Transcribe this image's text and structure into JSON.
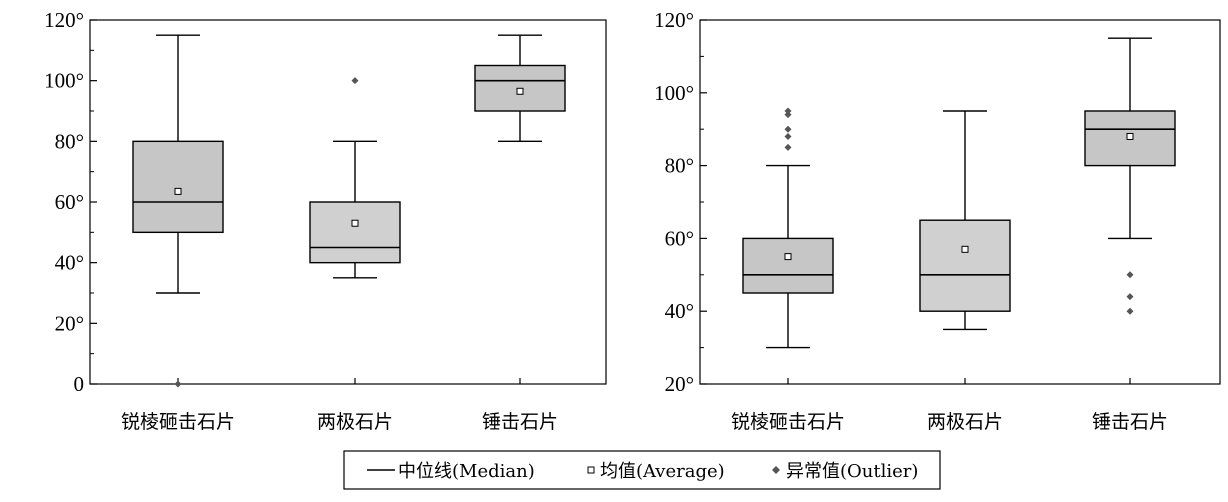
{
  "chart_data": [
    {
      "type": "box",
      "ylim": [
        0,
        120
      ],
      "yticks": [
        0,
        20,
        40,
        60,
        80,
        100,
        120
      ],
      "ytick_labels": [
        "0",
        "20°",
        "40°",
        "60°",
        "80°",
        "100°",
        "120°"
      ],
      "categories": [
        "锐棱砸击石片",
        "两极石片",
        "锤击石片"
      ],
      "boxes": [
        {
          "min": 30,
          "q1": 50,
          "median": 60,
          "q3": 80,
          "max": 115,
          "mean": 63.5,
          "outliers": [
            0
          ],
          "fill": "#c6c6c6"
        },
        {
          "min": 35,
          "q1": 40,
          "median": 45,
          "q3": 60,
          "max": 80,
          "mean": 53,
          "outliers": [
            100
          ],
          "fill": "#d0d0d0"
        },
        {
          "min": 80,
          "q1": 90,
          "median": 100,
          "q3": 105,
          "max": 115,
          "mean": 96.5,
          "outliers": [],
          "fill": "#c6c6c6"
        }
      ]
    },
    {
      "type": "box",
      "ylim": [
        20,
        120
      ],
      "yticks": [
        20,
        40,
        60,
        80,
        100,
        120
      ],
      "ytick_labels": [
        "20°",
        "40°",
        "60°",
        "80°",
        "100°",
        "120°"
      ],
      "categories": [
        "锐棱砸击石片",
        "两极石片",
        "锤击石片"
      ],
      "boxes": [
        {
          "min": 30,
          "q1": 45,
          "median": 50,
          "q3": 60,
          "max": 80,
          "mean": 55,
          "outliers": [
            85,
            88,
            90,
            94,
            95
          ],
          "fill": "#c6c6c6"
        },
        {
          "min": 35,
          "q1": 40,
          "median": 50,
          "q3": 65,
          "max": 95,
          "mean": 57,
          "outliers": [],
          "fill": "#d0d0d0"
        },
        {
          "min": 60,
          "q1": 80,
          "median": 90,
          "q3": 95,
          "max": 115,
          "mean": 88,
          "outliers": [
            40,
            44,
            50
          ],
          "fill": "#c6c6c6"
        }
      ]
    }
  ],
  "legend": {
    "median_label": "中位线(Median)",
    "mean_label": "均值(Average)",
    "outlier_label": "异常值(Outlier)"
  },
  "colors": {
    "outlier": "#555555",
    "line": "#000000"
  }
}
